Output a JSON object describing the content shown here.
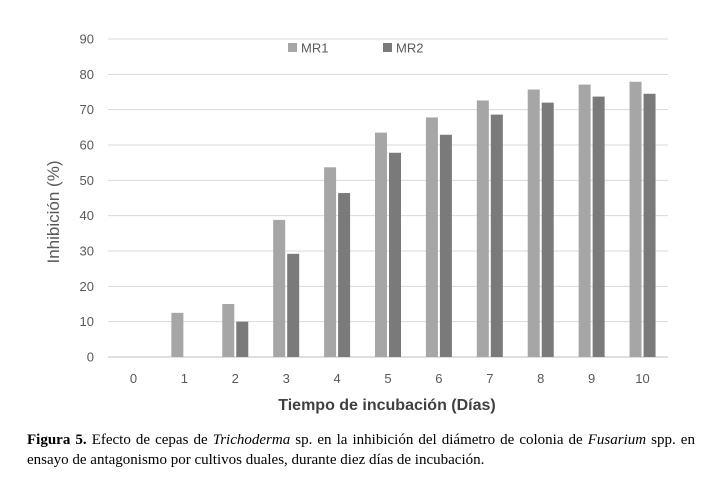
{
  "chart_data": {
    "type": "bar",
    "categories": [
      "0",
      "1",
      "2",
      "3",
      "4",
      "5",
      "6",
      "7",
      "8",
      "9",
      "10"
    ],
    "series": [
      {
        "name": "MR1",
        "color": "#a6a6a6",
        "values": [
          0,
          12.5,
          15,
          38.8,
          53.7,
          63.5,
          67.8,
          72.6,
          75.7,
          77.1,
          77.9
        ]
      },
      {
        "name": "MR2",
        "color": "#7a7a7a",
        "values": [
          0,
          0,
          10,
          29.2,
          46.4,
          57.8,
          62.9,
          68.6,
          72.0,
          73.7,
          74.5
        ]
      }
    ],
    "xlabel": "Tiempo de incubación (Días)",
    "ylabel": "Inhibición (%)",
    "ylim": [
      0,
      90
    ],
    "yticks": [
      "0",
      "10",
      "20",
      "30",
      "40",
      "50",
      "60",
      "70",
      "80",
      "90"
    ],
    "grid": true,
    "legend_position": "top-center"
  },
  "caption": {
    "label": "Figura 5.",
    "text_1": " Efecto de cepas de ",
    "italic_1": "Trichoderma",
    "text_2": " sp. en la inhibición del diámetro de colonia de ",
    "italic_2": "Fusarium",
    "text_3": " spp. en ensayo de antagonismo por cultivos duales, durante diez días de incubación."
  }
}
